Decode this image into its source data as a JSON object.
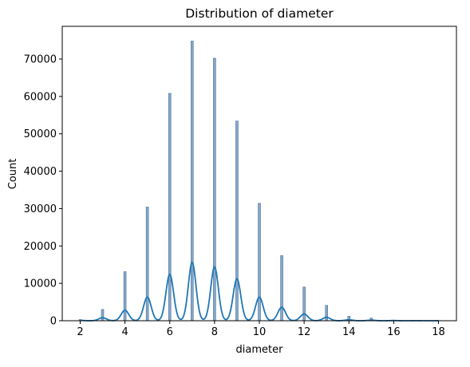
{
  "chart_data": {
    "type": "bar",
    "title": "Distribution of diameter",
    "xlabel": "diameter",
    "ylabel": "Count",
    "xlim": [
      1.2,
      18.8
    ],
    "ylim": [
      0,
      78750
    ],
    "xticks": [
      2,
      4,
      6,
      8,
      10,
      12,
      14,
      16,
      18
    ],
    "yticks": [
      0,
      10000,
      20000,
      30000,
      40000,
      50000,
      60000,
      70000
    ],
    "grid": false,
    "legend": "none",
    "bar_color": "#8aaac8",
    "bar_edge_color": "#5a7fa6",
    "kde_color": "#1f77b4",
    "histogram": {
      "x": [
        2,
        3,
        4,
        5,
        6,
        7,
        8,
        9,
        10,
        11,
        12,
        13,
        14,
        15,
        16,
        17,
        18
      ],
      "counts": [
        300,
        3000,
        13100,
        30400,
        60800,
        74800,
        70200,
        53400,
        31400,
        17400,
        9000,
        4100,
        1200,
        700,
        150,
        60,
        20
      ]
    },
    "kde": {
      "x": [
        2,
        3,
        4,
        5,
        6,
        7,
        8,
        9,
        10,
        11,
        12,
        13,
        14,
        15,
        16,
        17,
        18
      ],
      "peak_y": [
        100,
        800,
        2800,
        6300,
        12400,
        15600,
        14400,
        11200,
        6300,
        3600,
        1800,
        900,
        250,
        150,
        50,
        20,
        10
      ]
    }
  }
}
